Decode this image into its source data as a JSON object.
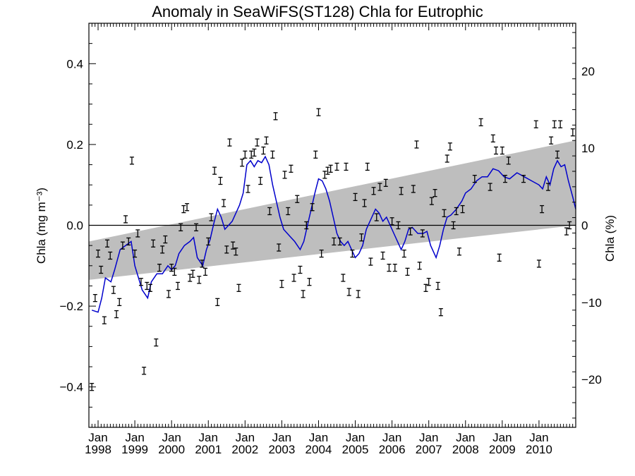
{
  "chart_data": {
    "type": "scatter",
    "title": "Anomaly in SeaWiFS(ST128) Chla for Eutrophic",
    "ylabel_left": "Chla (mg m⁻³)",
    "ylabel_right": "Chla (%)",
    "xlim": [
      1997.75,
      2011.0
    ],
    "ylim": [
      -0.5,
      0.5
    ],
    "ylim_right": [
      -26.2,
      26.2
    ],
    "left_ticks": [
      {
        "value": -0.4,
        "label": "−0.4"
      },
      {
        "value": -0.2,
        "label": "−0.2"
      },
      {
        "value": 0.0,
        "label": "0.0"
      },
      {
        "value": 0.2,
        "label": "0.2"
      },
      {
        "value": 0.4,
        "label": "0.4"
      }
    ],
    "right_ticks": [
      {
        "value": -20,
        "label": "−20"
      },
      {
        "value": -10,
        "label": "−10"
      },
      {
        "value": 0,
        "label": "0"
      },
      {
        "value": 10,
        "label": "10"
      },
      {
        "value": 20,
        "label": "20"
      }
    ],
    "x_ticks": [
      {
        "value": 1998.0,
        "month": "Jan",
        "year": "1998"
      },
      {
        "value": 1999.0,
        "month": "Jan",
        "year": "1999"
      },
      {
        "value": 2000.0,
        "month": "Jan",
        "year": "2000"
      },
      {
        "value": 2001.0,
        "month": "Jan",
        "year": "2001"
      },
      {
        "value": 2002.0,
        "month": "Jan",
        "year": "2002"
      },
      {
        "value": 2003.0,
        "month": "Jan",
        "year": "2003"
      },
      {
        "value": 2004.0,
        "month": "Jan",
        "year": "2004"
      },
      {
        "value": 2005.0,
        "month": "Jan",
        "year": "2005"
      },
      {
        "value": 2006.0,
        "month": "Jan",
        "year": "2006"
      },
      {
        "value": 2007.0,
        "month": "Jan",
        "year": "2007"
      },
      {
        "value": 2008.0,
        "month": "Jan",
        "year": "2008"
      },
      {
        "value": 2009.0,
        "month": "Jan",
        "year": "2009"
      },
      {
        "value": 2010.0,
        "month": "Jan",
        "year": "2010"
      }
    ],
    "zero_line": 0.0,
    "trend_band": {
      "x": [
        1997.75,
        2011.0
      ],
      "upper": [
        -0.04,
        0.21
      ],
      "lower": [
        -0.135,
        0.0
      ]
    },
    "colors": {
      "points": "#000000",
      "smooth_line": "#0000cc",
      "band": "#bebebe",
      "zero_line": "#000000"
    },
    "monthly_points": [
      {
        "x": 1997.83,
        "y": -0.4
      },
      {
        "x": 1997.92,
        "y": -0.18
      },
      {
        "x": 1998.0,
        "y": -0.07
      },
      {
        "x": 1998.08,
        "y": -0.11
      },
      {
        "x": 1998.17,
        "y": -0.235
      },
      {
        "x": 1998.25,
        "y": -0.045
      },
      {
        "x": 1998.33,
        "y": -0.075
      },
      {
        "x": 1998.42,
        "y": -0.16
      },
      {
        "x": 1998.5,
        "y": -0.22
      },
      {
        "x": 1998.58,
        "y": -0.19
      },
      {
        "x": 1998.67,
        "y": -0.05
      },
      {
        "x": 1998.75,
        "y": 0.015
      },
      {
        "x": 1998.83,
        "y": -0.04
      },
      {
        "x": 1998.92,
        "y": 0.16
      },
      {
        "x": 1999.0,
        "y": -0.07
      },
      {
        "x": 1999.08,
        "y": -0.02
      },
      {
        "x": 1999.17,
        "y": -0.14
      },
      {
        "x": 1999.25,
        "y": -0.36
      },
      {
        "x": 1999.33,
        "y": -0.15
      },
      {
        "x": 1999.42,
        "y": -0.155
      },
      {
        "x": 1999.5,
        "y": -0.045
      },
      {
        "x": 1999.58,
        "y": -0.29
      },
      {
        "x": 1999.67,
        "y": -0.105
      },
      {
        "x": 1999.75,
        "y": -0.06
      },
      {
        "x": 1999.83,
        "y": -0.035
      },
      {
        "x": 1999.92,
        "y": -0.17
      },
      {
        "x": 2000.0,
        "y": -0.105
      },
      {
        "x": 2000.08,
        "y": -0.115
      },
      {
        "x": 2000.17,
        "y": -0.15
      },
      {
        "x": 2000.25,
        "y": -0.005
      },
      {
        "x": 2000.33,
        "y": 0.04
      },
      {
        "x": 2000.42,
        "y": 0.045
      },
      {
        "x": 2000.5,
        "y": -0.13
      },
      {
        "x": 2000.58,
        "y": -0.12
      },
      {
        "x": 2000.67,
        "y": -0.005
      },
      {
        "x": 2000.75,
        "y": -0.135
      },
      {
        "x": 2000.83,
        "y": -0.095
      },
      {
        "x": 2000.92,
        "y": -0.115
      },
      {
        "x": 2001.0,
        "y": -0.04
      },
      {
        "x": 2001.08,
        "y": 0.02
      },
      {
        "x": 2001.17,
        "y": 0.135
      },
      {
        "x": 2001.25,
        "y": -0.19
      },
      {
        "x": 2001.33,
        "y": 0.11
      },
      {
        "x": 2001.42,
        "y": 0.055
      },
      {
        "x": 2001.5,
        "y": -0.06
      },
      {
        "x": 2001.58,
        "y": 0.205
      },
      {
        "x": 2001.67,
        "y": -0.05
      },
      {
        "x": 2001.75,
        "y": -0.065
      },
      {
        "x": 2001.83,
        "y": -0.155
      },
      {
        "x": 2001.92,
        "y": 0.155
      },
      {
        "x": 2002.0,
        "y": 0.175
      },
      {
        "x": 2002.08,
        "y": 0.09
      },
      {
        "x": 2002.17,
        "y": 0.175
      },
      {
        "x": 2002.25,
        "y": 0.18
      },
      {
        "x": 2002.33,
        "y": 0.205
      },
      {
        "x": 2002.42,
        "y": 0.11
      },
      {
        "x": 2002.5,
        "y": 0.185
      },
      {
        "x": 2002.58,
        "y": 0.21
      },
      {
        "x": 2002.67,
        "y": 0.035
      },
      {
        "x": 2002.75,
        "y": 0.175
      },
      {
        "x": 2002.83,
        "y": 0.27
      },
      {
        "x": 2002.92,
        "y": -0.055
      },
      {
        "x": 2003.0,
        "y": -0.145
      },
      {
        "x": 2003.08,
        "y": 0.125
      },
      {
        "x": 2003.17,
        "y": 0.035
      },
      {
        "x": 2003.25,
        "y": 0.14
      },
      {
        "x": 2003.33,
        "y": -0.13
      },
      {
        "x": 2003.42,
        "y": 0.065
      },
      {
        "x": 2003.5,
        "y": -0.11
      },
      {
        "x": 2003.58,
        "y": -0.17
      },
      {
        "x": 2003.67,
        "y": 0.0
      },
      {
        "x": 2003.75,
        "y": -0.14
      },
      {
        "x": 2003.83,
        "y": 0.045
      },
      {
        "x": 2003.92,
        "y": 0.175
      },
      {
        "x": 2004.0,
        "y": 0.28
      },
      {
        "x": 2004.08,
        "y": -0.07
      },
      {
        "x": 2004.17,
        "y": 0.125
      },
      {
        "x": 2004.25,
        "y": 0.135
      },
      {
        "x": 2004.33,
        "y": 0.14
      },
      {
        "x": 2004.42,
        "y": -0.04
      },
      {
        "x": 2004.5,
        "y": 0.145
      },
      {
        "x": 2004.58,
        "y": -0.04
      },
      {
        "x": 2004.67,
        "y": -0.13
      },
      {
        "x": 2004.75,
        "y": 0.145
      },
      {
        "x": 2004.83,
        "y": -0.165
      },
      {
        "x": 2004.92,
        "y": -0.07
      },
      {
        "x": 2005.0,
        "y": 0.07
      },
      {
        "x": 2005.08,
        "y": -0.17
      },
      {
        "x": 2005.17,
        "y": -0.03
      },
      {
        "x": 2005.25,
        "y": 0.055
      },
      {
        "x": 2005.33,
        "y": 0.145
      },
      {
        "x": 2005.42,
        "y": -0.09
      },
      {
        "x": 2005.5,
        "y": 0.085
      },
      {
        "x": 2005.58,
        "y": 0.02
      },
      {
        "x": 2005.67,
        "y": 0.095
      },
      {
        "x": 2005.75,
        "y": -0.075
      },
      {
        "x": 2005.83,
        "y": 0.105
      },
      {
        "x": 2005.92,
        "y": -0.105
      },
      {
        "x": 2006.0,
        "y": 0.01
      },
      {
        "x": 2006.08,
        "y": -0.105
      },
      {
        "x": 2006.17,
        "y": 0.0
      },
      {
        "x": 2006.25,
        "y": 0.085
      },
      {
        "x": 2006.33,
        "y": -0.07
      },
      {
        "x": 2006.42,
        "y": -0.115
      },
      {
        "x": 2006.5,
        "y": -0.015
      },
      {
        "x": 2006.58,
        "y": 0.09
      },
      {
        "x": 2006.67,
        "y": 0.2
      },
      {
        "x": 2006.75,
        "y": -0.1
      },
      {
        "x": 2006.83,
        "y": -0.02
      },
      {
        "x": 2006.92,
        "y": -0.155
      },
      {
        "x": 2007.0,
        "y": -0.14
      },
      {
        "x": 2007.08,
        "y": 0.06
      },
      {
        "x": 2007.17,
        "y": 0.08
      },
      {
        "x": 2007.25,
        "y": -0.15
      },
      {
        "x": 2007.33,
        "y": -0.215
      },
      {
        "x": 2007.42,
        "y": 0.03
      },
      {
        "x": 2007.5,
        "y": 0.165
      },
      {
        "x": 2007.58,
        "y": 0.195
      },
      {
        "x": 2007.67,
        "y": 0.0
      },
      {
        "x": 2007.75,
        "y": 0.035
      },
      {
        "x": 2007.83,
        "y": -0.065
      },
      {
        "x": 2007.92,
        "y": 0.04
      },
      {
        "x": 2008.25,
        "y": 0.115
      },
      {
        "x": 2008.42,
        "y": 0.255
      },
      {
        "x": 2008.67,
        "y": 0.095
      },
      {
        "x": 2008.75,
        "y": 0.215
      },
      {
        "x": 2008.83,
        "y": 0.185
      },
      {
        "x": 2008.92,
        "y": -0.08
      },
      {
        "x": 2009.0,
        "y": 0.185
      },
      {
        "x": 2009.08,
        "y": 0.115
      },
      {
        "x": 2009.17,
        "y": 0.16
      },
      {
        "x": 2009.58,
        "y": 0.115
      },
      {
        "x": 2009.92,
        "y": 0.25
      },
      {
        "x": 2010.0,
        "y": -0.095
      },
      {
        "x": 2010.08,
        "y": 0.04
      },
      {
        "x": 2010.25,
        "y": 0.095
      },
      {
        "x": 2010.33,
        "y": 0.21
      },
      {
        "x": 2010.42,
        "y": 0.25
      },
      {
        "x": 2010.5,
        "y": 0.175
      },
      {
        "x": 2010.58,
        "y": 0.25
      },
      {
        "x": 2010.75,
        "y": -0.015
      },
      {
        "x": 2010.83,
        "y": 0.0
      },
      {
        "x": 2010.92,
        "y": 0.23
      }
    ],
    "smoothed_series": {
      "x": [
        1997.83,
        1998.0,
        1998.1,
        1998.2,
        1998.35,
        1998.45,
        1998.6,
        1998.75,
        1998.9,
        1999.0,
        1999.1,
        1999.2,
        1999.35,
        1999.45,
        1999.6,
        1999.75,
        1999.9,
        2000.0,
        2000.1,
        2000.2,
        2000.35,
        2000.5,
        2000.6,
        2000.7,
        2000.85,
        2000.95,
        2001.05,
        2001.15,
        2001.25,
        2001.35,
        2001.45,
        2001.55,
        2001.65,
        2001.75,
        2001.85,
        2001.95,
        2002.05,
        2002.15,
        2002.25,
        2002.35,
        2002.45,
        2002.55,
        2002.65,
        2002.75,
        2002.85,
        2002.95,
        2003.05,
        2003.15,
        2003.25,
        2003.35,
        2003.5,
        2003.6,
        2003.7,
        2003.8,
        2003.9,
        2004.0,
        2004.1,
        2004.2,
        2004.3,
        2004.4,
        2004.5,
        2004.6,
        2004.7,
        2004.8,
        2004.9,
        2005.0,
        2005.1,
        2005.2,
        2005.3,
        2005.45,
        2005.55,
        2005.65,
        2005.75,
        2005.85,
        2005.95,
        2006.05,
        2006.15,
        2006.25,
        2006.35,
        2006.45,
        2006.55,
        2006.7,
        2006.85,
        2006.95,
        2007.05,
        2007.2,
        2007.3,
        2007.4,
        2007.5,
        2007.6,
        2007.75,
        2007.9,
        2008.0,
        2008.15,
        2008.3,
        2008.45,
        2008.6,
        2008.75,
        2008.9,
        2009.05,
        2009.2,
        2009.4,
        2009.6,
        2009.8,
        2010.0,
        2010.1,
        2010.2,
        2010.3,
        2010.4,
        2010.5,
        2010.6,
        2010.7,
        2010.8,
        2010.92,
        2011.0
      ],
      "y": [
        -0.21,
        -0.215,
        -0.18,
        -0.13,
        -0.14,
        -0.11,
        -0.06,
        -0.05,
        -0.04,
        -0.1,
        -0.13,
        -0.16,
        -0.18,
        -0.14,
        -0.12,
        -0.12,
        -0.1,
        -0.11,
        -0.1,
        -0.07,
        -0.05,
        -0.04,
        -0.03,
        -0.08,
        -0.1,
        -0.06,
        -0.035,
        0.005,
        0.04,
        0.02,
        -0.01,
        0.0,
        0.01,
        0.03,
        0.05,
        0.08,
        0.15,
        0.16,
        0.145,
        0.16,
        0.155,
        0.17,
        0.15,
        0.1,
        0.06,
        0.02,
        -0.01,
        -0.02,
        -0.03,
        -0.04,
        -0.06,
        -0.04,
        0.0,
        0.04,
        0.08,
        0.115,
        0.11,
        0.09,
        0.06,
        0.02,
        -0.02,
        -0.04,
        -0.05,
        -0.04,
        -0.06,
        -0.08,
        -0.07,
        -0.05,
        -0.01,
        0.02,
        0.04,
        0.03,
        0.01,
        0.02,
        0.0,
        -0.02,
        -0.04,
        -0.06,
        -0.04,
        -0.01,
        -0.005,
        -0.02,
        -0.02,
        -0.015,
        -0.05,
        -0.08,
        -0.05,
        -0.01,
        0.02,
        0.025,
        0.04,
        0.06,
        0.08,
        0.09,
        0.11,
        0.12,
        0.12,
        0.14,
        0.135,
        0.12,
        0.115,
        0.13,
        0.12,
        0.11,
        0.1,
        0.09,
        0.12,
        0.1,
        0.14,
        0.16,
        0.145,
        0.15,
        0.11,
        0.07,
        0.04
      ]
    }
  }
}
